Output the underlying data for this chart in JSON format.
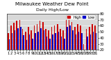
{
  "title": "Milwaukee Weather Dew Point",
  "subtitle": "Daily High/Low",
  "days": [
    1,
    2,
    3,
    4,
    5,
    6,
    7,
    8,
    9,
    10,
    11,
    12,
    13,
    14,
    15,
    16,
    17,
    18,
    19,
    20,
    21,
    22,
    23,
    24,
    25,
    26,
    27,
    28,
    29,
    30,
    31
  ],
  "high": [
    48,
    60,
    65,
    68,
    70,
    55,
    50,
    58,
    52,
    60,
    63,
    68,
    66,
    55,
    52,
    58,
    60,
    63,
    55,
    52,
    70,
    73,
    66,
    58,
    63,
    60,
    30,
    55,
    58,
    63,
    60
  ],
  "low": [
    38,
    48,
    52,
    56,
    58,
    44,
    36,
    46,
    39,
    48,
    50,
    56,
    52,
    42,
    39,
    46,
    48,
    50,
    42,
    39,
    58,
    60,
    52,
    46,
    50,
    48,
    20,
    42,
    46,
    50,
    48
  ],
  "ylim": [
    20,
    80
  ],
  "yticks": [
    20,
    30,
    40,
    50,
    60,
    70,
    80
  ],
  "high_color": "#cc0000",
  "low_color": "#0000cc",
  "background_color": "#ffffff",
  "plot_bg": "#d8d8d8",
  "grid_color": "#ffffff",
  "title_fontsize": 5.0,
  "tick_fontsize": 3.8,
  "legend_fontsize": 3.8,
  "bar_width": 0.38
}
